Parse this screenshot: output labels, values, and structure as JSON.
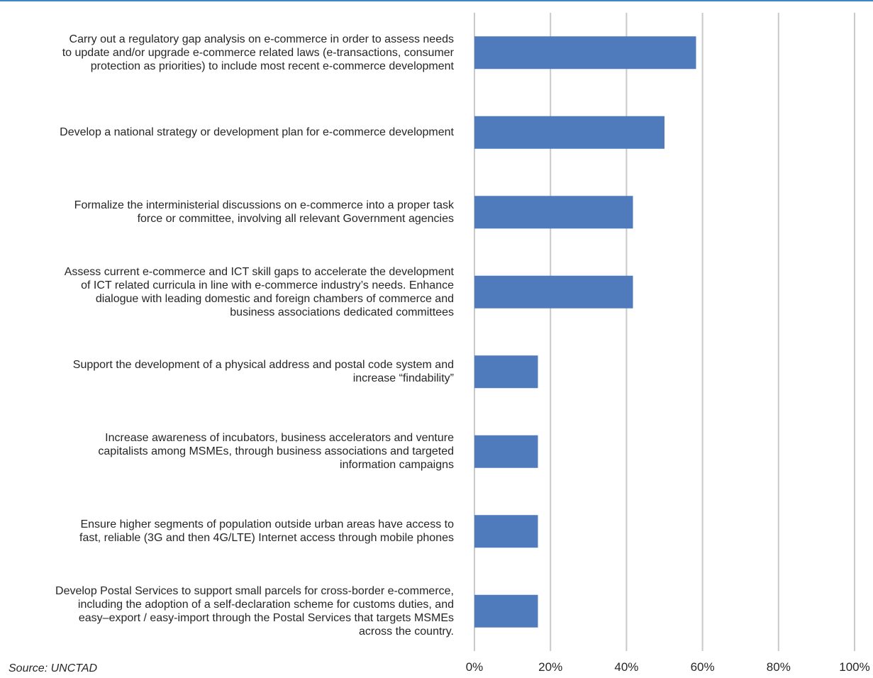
{
  "chart_data": {
    "type": "bar",
    "orientation": "horizontal",
    "categories": [
      "Carry out a regulatory gap analysis on e-commerce in order to assess needs to update and/or upgrade e-commerce related laws (e-transactions, consumer protection as priorities) to include most recent e-commerce development",
      "Develop a national strategy or development plan for e-commerce development",
      "Formalize the interministerial discussions on e-commerce into a proper task force or committee, involving all relevant Government agencies",
      "Assess current e-commerce and ICT skill gaps to accelerate the development of ICT related curricula in line with e-commerce industry’s needs. Enhance dialogue with leading domestic and foreign chambers of commerce and business associations dedicated committees",
      "Support the development of a physical address and postal code system and increase “findability”",
      "Increase awareness of incubators, business accelerators and venture capitalists among MSMEs, through business associations and targeted information campaigns",
      "Ensure higher segments of population outside urban areas have access to fast, reliable (3G and then 4G/LTE) Internet access through mobile phones",
      "Develop Postal Services to support small parcels for cross-border e-commerce, including the adoption of a self-declaration scheme for customs duties, and easy–export / easy-import through the Postal Services that targets MSMEs across the country."
    ],
    "category_lines": [
      [
        "Carry out a regulatory gap analysis on e-commerce in order to assess needs",
        "to update and/or upgrade e-commerce related laws (e-transactions, consumer",
        "protection as priorities) to include most recent e-commerce development"
      ],
      [
        "Develop a national strategy or development plan for e-commerce development"
      ],
      [
        "Formalize the interministerial discussions on e-commerce into a proper task",
        "force or committee, involving all relevant Government agencies"
      ],
      [
        "Assess current e-commerce and ICT skill gaps to accelerate the development",
        "of ICT related curricula in line with e-commerce industry’s needs. Enhance",
        "dialogue with leading domestic and foreign chambers of commerce and",
        "business associations dedicated committees"
      ],
      [
        "Support the development of a physical address and postal code system and",
        "increase “findability”"
      ],
      [
        "Increase awareness of incubators, business accelerators and venture",
        "capitalists among MSMEs, through business associations and targeted",
        "information campaigns"
      ],
      [
        "Ensure higher segments of population outside urban areas have access to",
        "fast, reliable (3G and then 4G/LTE) Internet access through mobile phones"
      ],
      [
        "Develop Postal Services to support small parcels for cross-border e-commerce,",
        "including the adoption of a self-declaration scheme for customs duties, and",
        "easy–export / easy-import through the Postal Services that targets MSMEs",
        "across the country."
      ]
    ],
    "values": [
      58.3,
      50.0,
      41.7,
      41.7,
      16.7,
      16.7,
      16.7,
      16.7
    ],
    "value_unit": "%",
    "xlim": [
      0,
      100
    ],
    "x_ticks": [
      0,
      20,
      40,
      60,
      80,
      100
    ],
    "x_tick_labels": [
      "0%",
      "20%",
      "40%",
      "60%",
      "80%",
      "100%"
    ],
    "grid": "vertical",
    "legend": "none",
    "bar_color": "#4f7bbd",
    "grid_color": "#c9c9c9",
    "title": "",
    "xlabel": "",
    "ylabel": ""
  },
  "footer": {
    "source_text": "Source: UNCTAD"
  },
  "colors": {
    "top_rule": "#3a86c6"
  }
}
